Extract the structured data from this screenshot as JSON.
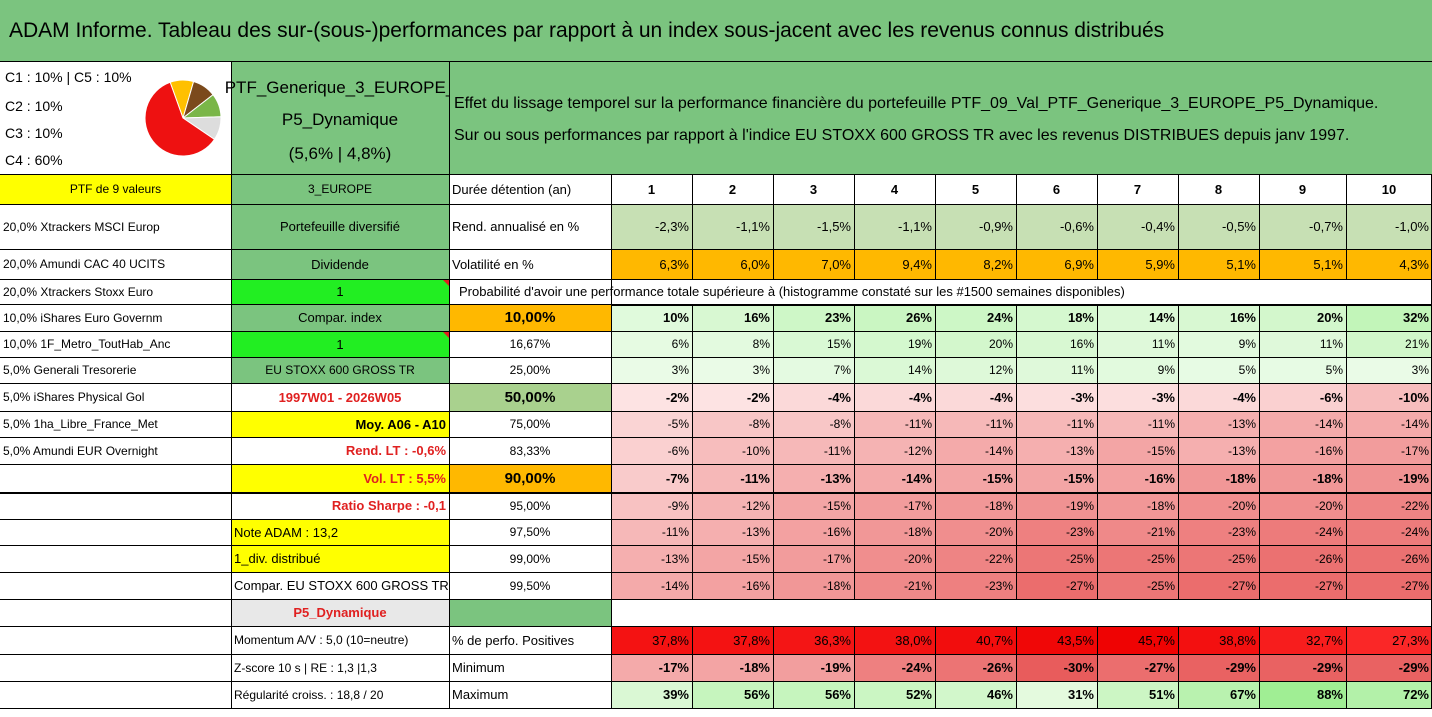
{
  "title": "ADAM Informe. Tableau des sur-(sous-)performances par rapport à un index sous-jacent avec les revenus connus distribués",
  "colors": {
    "green": "#7bc47f",
    "yellow": "#ffff00",
    "orange": "#ffb800",
    "brightgreen": "#22ee22",
    "header_green": "#c7e0b4"
  },
  "pie_legend": [
    "C1 : 10% | C5 : 10%",
    "C2 : 10%",
    "C3 : 10%",
    "C4 : 60%"
  ],
  "pie": [
    {
      "label": "C4",
      "value": 60,
      "color": "#ee1111"
    },
    {
      "label": "C1",
      "value": 10,
      "color": "#dddddd"
    },
    {
      "label": "C2",
      "value": 10,
      "color": "#7ab648"
    },
    {
      "label": "C3",
      "value": 10,
      "color": "#7b4a1c"
    },
    {
      "label": "C5",
      "value": 10,
      "color": "#ffc000"
    }
  ],
  "portfolio": {
    "name_line1": "PTF_Generique_3_EUROPE_",
    "name_line2": "P5_Dynamique",
    "perf": "(5,6% | 4,8%)"
  },
  "description": {
    "line1": "Effet du lissage temporel sur la performance financière du portefeuille PTF_09_Val_PTF_Generique_3_EUROPE_P5_Dynamique.",
    "line2": "Sur ou sous performances par rapport à l'indice EU STOXX 600 GROSS TR avec les revenus DISTRIBUES depuis janv 1997."
  },
  "col_a": [
    "PTF de 9 valeurs",
    "20,0% Xtrackers MSCI Europ",
    "20,0% Amundi CAC 40 UCITS",
    "20,0% Xtrackers Stoxx Euro",
    "10,0% iShares Euro Governm",
    "10,0% 1F_Metro_ToutHab_Anc",
    "5,0% Generali Tresorerie",
    "5,0% iShares Physical Gol",
    "5,0% 1ha_Libre_France_Met",
    "5,0% Amundi EUR Overnight"
  ],
  "col_b": {
    "region": "3_EUROPE",
    "div_label": "Portefeuille diversifié",
    "dividende": "Dividende",
    "one_a": "1",
    "compar_index": "Compar. index",
    "one_b": "1",
    "index_name": "EU STOXX 600 GROSS TR",
    "period": "1997W01 - 2026W05",
    "moy": "Moy. A06 - A10",
    "rend_lt": "Rend. LT : -0,6%",
    "vol_lt": "Vol. LT : 5,5%",
    "sharpe": "Ratio Sharpe : -0,1",
    "note": "Note ADAM : 13,2",
    "div_distrib": "1_div. distribué",
    "compar_full": "Compar. EU STOXX 600 GROSS TR",
    "profile": "P5_Dynamique",
    "momentum": "Momentum A/V : 5,0 (10=neutre)",
    "zscore": "Z-score 10 s | RE : 1,3 |1,3",
    "regularite": "Régularité croiss. : 18,8 / 20"
  },
  "header_label": "Durée détention (an)",
  "years": [
    "1",
    "2",
    "3",
    "4",
    "5",
    "6",
    "7",
    "8",
    "9",
    "10"
  ],
  "rend": {
    "label": "Rend. annualisé en %",
    "values": [
      "-2,3%",
      "-1,1%",
      "-1,5%",
      "-1,1%",
      "-0,9%",
      "-0,6%",
      "-0,4%",
      "-0,5%",
      "-0,7%",
      "-1,0%"
    ]
  },
  "vol": {
    "label": "Volatilité en %",
    "values": [
      "6,3%",
      "6,0%",
      "7,0%",
      "9,4%",
      "8,2%",
      "6,9%",
      "5,9%",
      "5,1%",
      "5,1%",
      "4,3%"
    ]
  },
  "prob_label": "Probabilité d'avoir une performance totale supérieure à (histogramme constaté sur les #1500 semaines disponibles)",
  "quantiles": [
    {
      "p": "10,00%",
      "values": [
        "10%",
        "16%",
        "23%",
        "26%",
        "24%",
        "18%",
        "14%",
        "16%",
        "20%",
        "32%"
      ]
    },
    {
      "p": "16,67%",
      "values": [
        "6%",
        "8%",
        "15%",
        "19%",
        "20%",
        "16%",
        "11%",
        "9%",
        "11%",
        "21%"
      ]
    },
    {
      "p": "25,00%",
      "values": [
        "3%",
        "3%",
        "7%",
        "14%",
        "12%",
        "11%",
        "9%",
        "5%",
        "5%",
        "3%"
      ]
    },
    {
      "p": "50,00%",
      "values": [
        "-2%",
        "-2%",
        "-4%",
        "-4%",
        "-4%",
        "-3%",
        "-3%",
        "-4%",
        "-6%",
        "-10%"
      ]
    },
    {
      "p": "75,00%",
      "values": [
        "-5%",
        "-8%",
        "-8%",
        "-11%",
        "-11%",
        "-11%",
        "-11%",
        "-13%",
        "-14%",
        "-14%"
      ]
    },
    {
      "p": "83,33%",
      "values": [
        "-6%",
        "-10%",
        "-11%",
        "-12%",
        "-14%",
        "-13%",
        "-15%",
        "-13%",
        "-16%",
        "-17%"
      ]
    },
    {
      "p": "90,00%",
      "values": [
        "-7%",
        "-11%",
        "-13%",
        "-14%",
        "-15%",
        "-15%",
        "-16%",
        "-18%",
        "-18%",
        "-19%"
      ]
    },
    {
      "p": "95,00%",
      "values": [
        "-9%",
        "-12%",
        "-15%",
        "-17%",
        "-18%",
        "-19%",
        "-18%",
        "-20%",
        "-20%",
        "-22%"
      ]
    },
    {
      "p": "97,50%",
      "values": [
        "-11%",
        "-13%",
        "-16%",
        "-18%",
        "-20%",
        "-23%",
        "-21%",
        "-23%",
        "-24%",
        "-24%"
      ]
    },
    {
      "p": "99,00%",
      "values": [
        "-13%",
        "-15%",
        "-17%",
        "-20%",
        "-22%",
        "-25%",
        "-25%",
        "-25%",
        "-26%",
        "-26%"
      ]
    },
    {
      "p": "99,50%",
      "values": [
        "-14%",
        "-16%",
        "-18%",
        "-21%",
        "-23%",
        "-27%",
        "-25%",
        "-27%",
        "-27%",
        "-27%"
      ]
    }
  ],
  "positives": {
    "label": "% de perfo. Positives",
    "values": [
      "37,8%",
      "37,8%",
      "36,3%",
      "38,0%",
      "40,7%",
      "43,5%",
      "45,7%",
      "38,8%",
      "32,7%",
      "27,3%"
    ]
  },
  "minimum": {
    "label": "Minimum",
    "values": [
      "-17%",
      "-18%",
      "-19%",
      "-24%",
      "-26%",
      "-30%",
      "-27%",
      "-29%",
      "-29%",
      "-29%"
    ]
  },
  "maximum": {
    "label": "Maximum",
    "values": [
      "39%",
      "56%",
      "56%",
      "52%",
      "46%",
      "31%",
      "51%",
      "67%",
      "88%",
      "72%"
    ]
  }
}
